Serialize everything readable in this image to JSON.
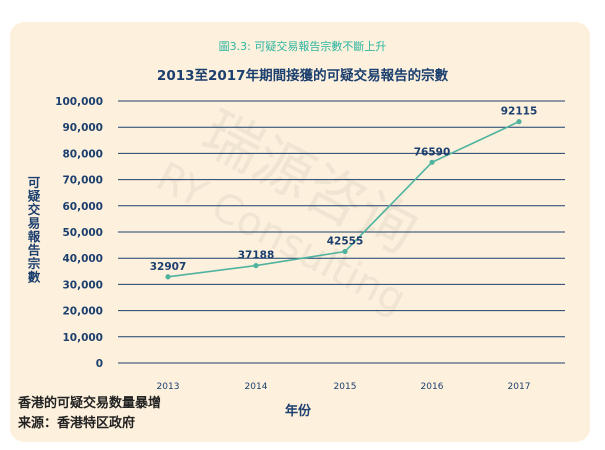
{
  "figure_caption": "圖3.3: 可疑交易報告宗數不斷上升",
  "watermark": "瑞源咨询 RY Consulting",
  "notes": {
    "line1": "香港的可疑交易数量暴增",
    "line2": "来源：香港特区政府"
  },
  "colors": {
    "background": "#fdf0dc",
    "line": "#4fb3a0",
    "gridline": "#1b3f6e",
    "text": "#1b3f6e",
    "caption": "#2bb5a0"
  },
  "chart_data": {
    "type": "line",
    "title": "2013至2017年期間接獲的可疑交易報告的宗數",
    "xlabel": "年份",
    "ylabel": "可疑交易報告宗數",
    "categories": [
      "2013",
      "2014",
      "2015",
      "2016",
      "2017"
    ],
    "values": [
      32907,
      37188,
      42555,
      76590,
      92115
    ],
    "data_labels": [
      "32907",
      "37188",
      "42555",
      "76590",
      "92115"
    ],
    "yticks": [
      "0",
      "10,000",
      "20,000",
      "30,000",
      "40,000",
      "50,000",
      "60,000",
      "70,000",
      "80,000",
      "90,000",
      "100,000"
    ],
    "ylim": [
      0,
      100000
    ],
    "grid": true,
    "legend": "none"
  }
}
